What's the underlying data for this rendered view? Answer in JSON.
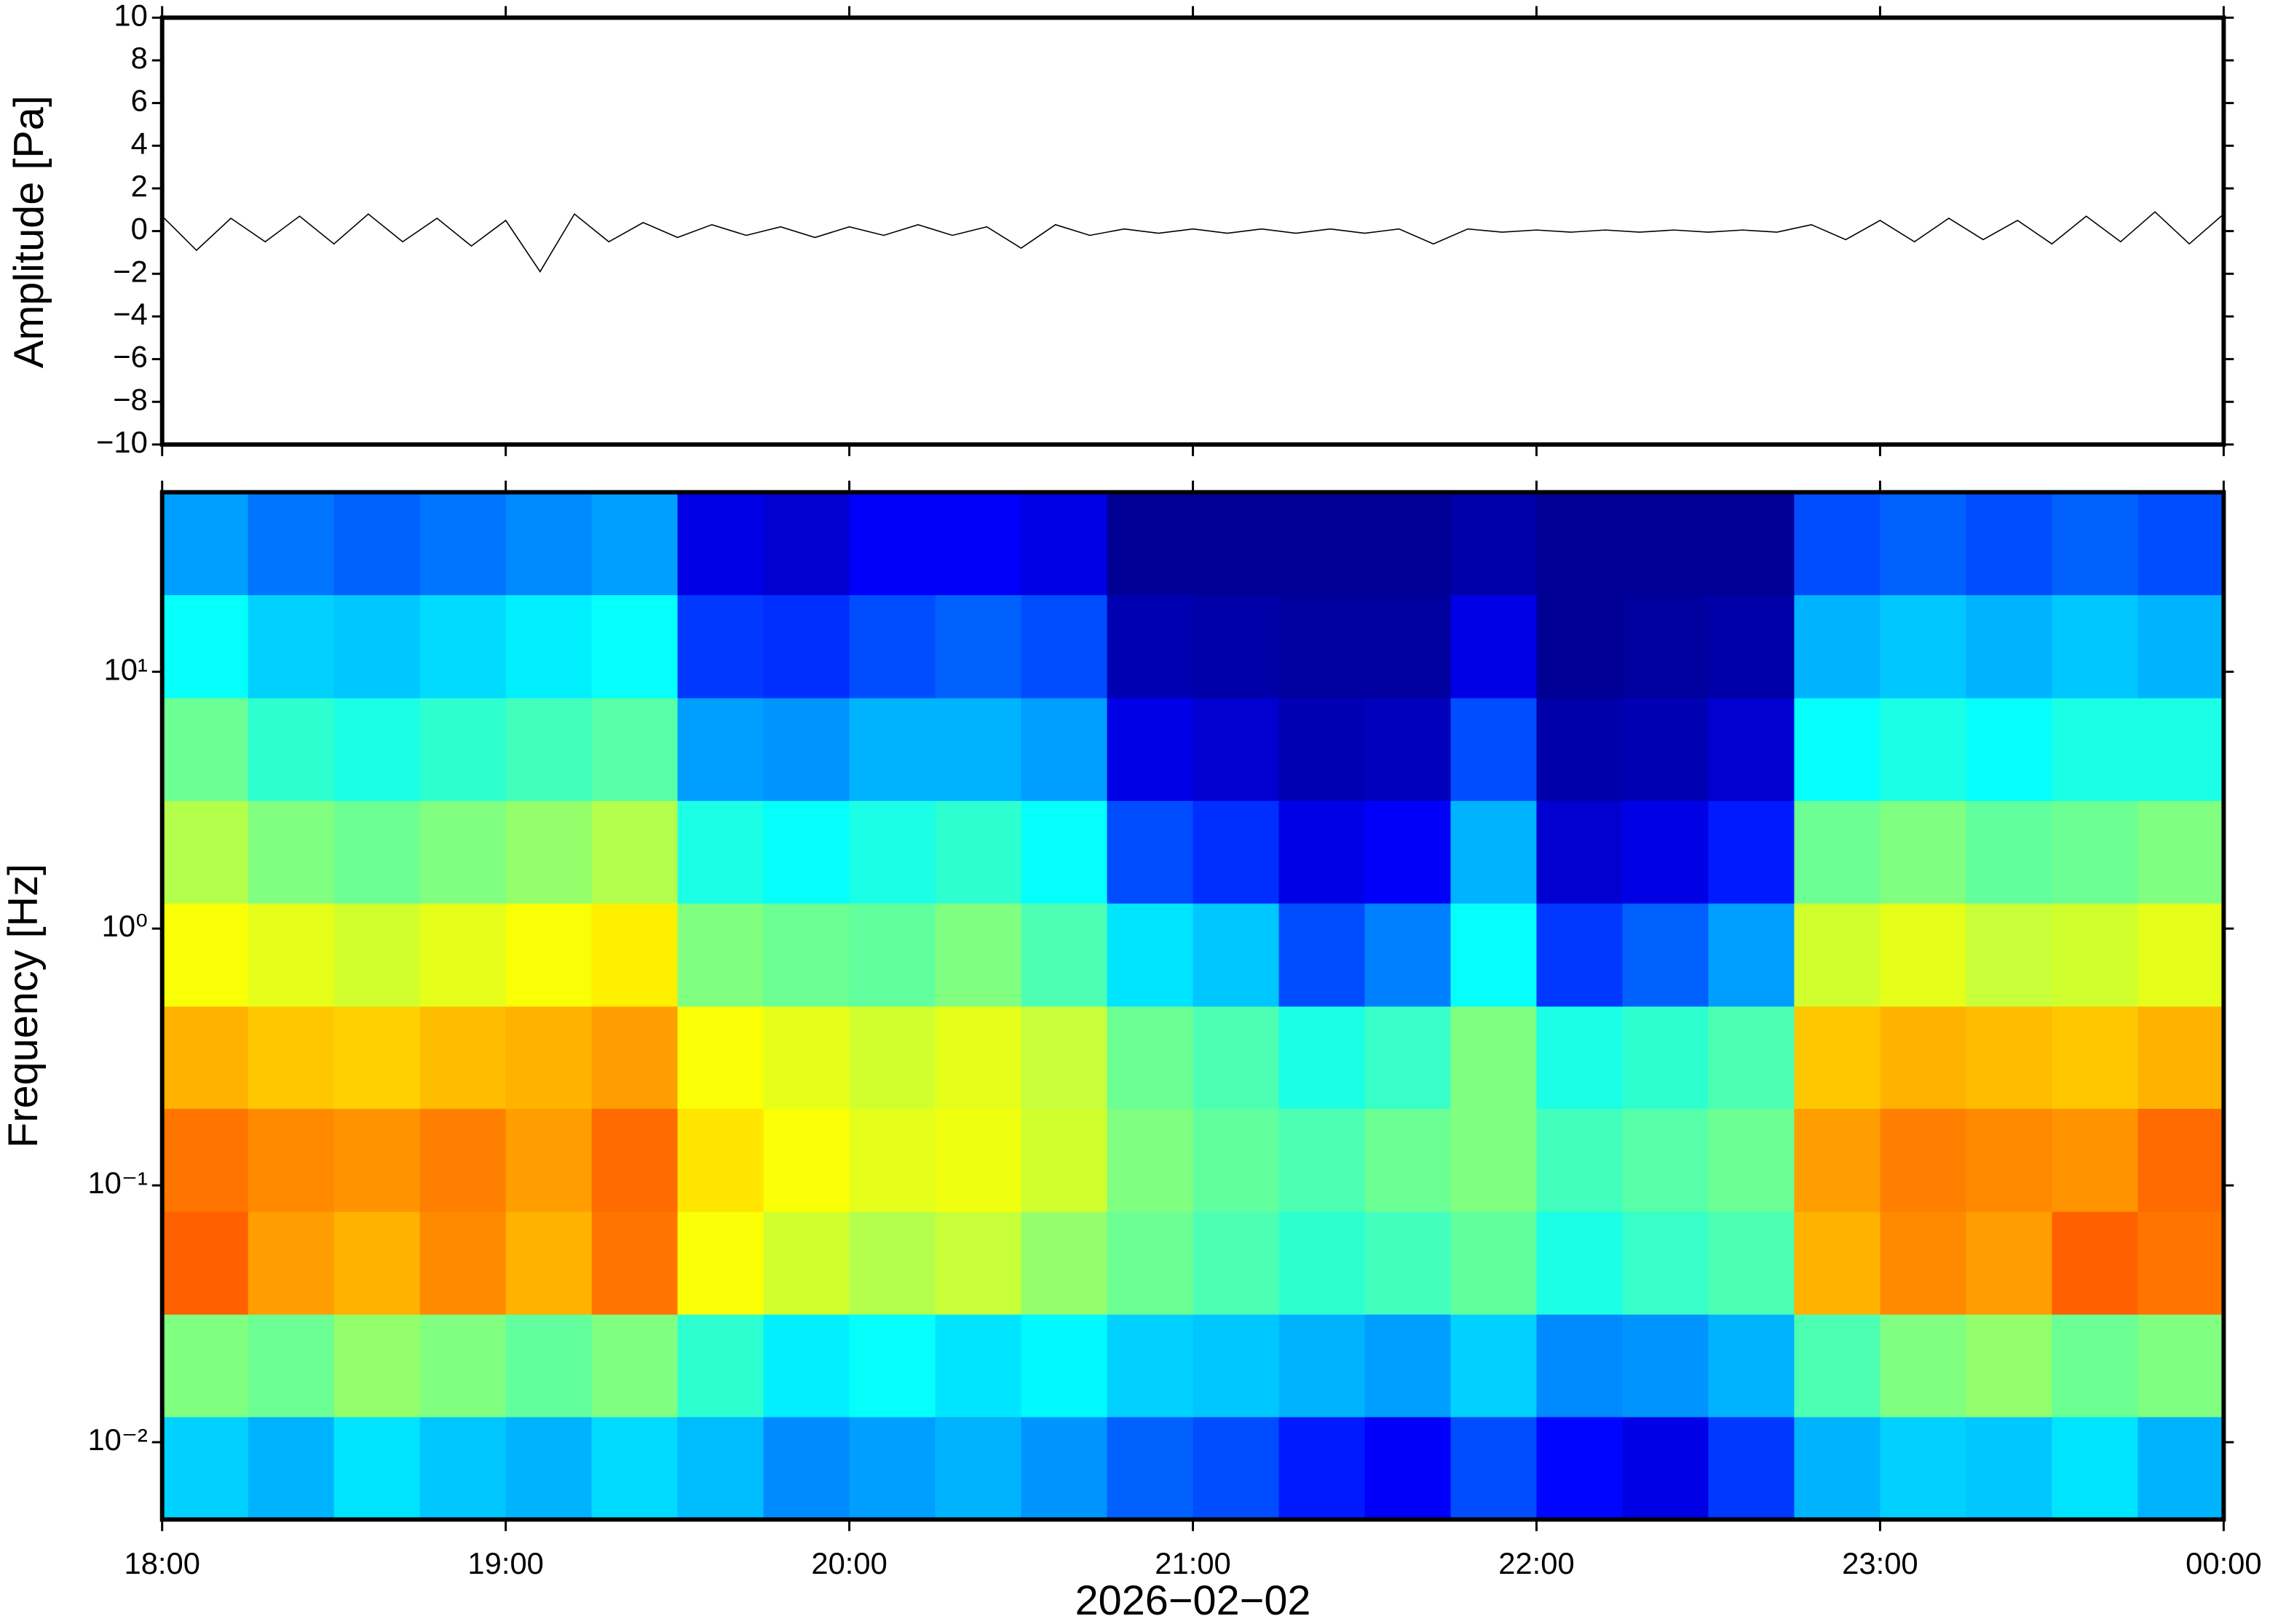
{
  "chart_data": [
    {
      "type": "line",
      "ylabel": "Amplitude [Pa]",
      "color": "#000000",
      "xlim": [
        18,
        24
      ],
      "ylim": [
        -10,
        10
      ],
      "yticks": [
        {
          "value": -10,
          "label": "−10"
        },
        {
          "value": -8,
          "label": "−8"
        },
        {
          "value": -6,
          "label": "−6"
        },
        {
          "value": -4,
          "label": "−4"
        },
        {
          "value": -2,
          "label": "−2"
        },
        0,
        2,
        4,
        6,
        8,
        10
      ],
      "x": [
        18,
        18.1,
        18.2,
        18.3,
        18.4,
        18.5,
        18.6,
        18.7,
        18.8,
        18.9,
        19,
        19.1,
        19.2,
        19.3,
        19.4,
        19.5,
        19.6,
        19.7,
        19.8,
        19.9,
        20,
        20.1,
        20.2,
        20.3,
        20.4,
        20.5,
        20.6,
        20.7,
        20.8,
        20.9,
        21,
        21.1,
        21.2,
        21.3,
        21.4,
        21.5,
        21.6,
        21.7,
        21.8,
        21.9,
        22,
        22.1,
        22.2,
        22.3,
        22.4,
        22.5,
        22.6,
        22.7,
        22.8,
        22.9,
        23,
        23.1,
        23.2,
        23.3,
        23.4,
        23.5,
        23.6,
        23.7,
        23.8,
        23.9,
        24
      ],
      "values": [
        0.7,
        -0.9,
        0.6,
        -0.5,
        0.7,
        -0.6,
        0.8,
        -0.5,
        0.6,
        -0.7,
        0.5,
        -1.9,
        0.8,
        -0.5,
        0.4,
        -0.3,
        0.3,
        -0.2,
        0.2,
        -0.3,
        0.2,
        -0.2,
        0.3,
        -0.2,
        0.2,
        -0.8,
        0.3,
        -0.2,
        0.1,
        -0.1,
        0.1,
        -0.1,
        0.1,
        -0.1,
        0.1,
        -0.1,
        0.1,
        -0.6,
        0.1,
        -0.05,
        0.05,
        -0.05,
        0.05,
        -0.05,
        0.05,
        -0.05,
        0.05,
        -0.05,
        0.3,
        -0.4,
        0.5,
        -0.5,
        0.6,
        -0.4,
        0.5,
        -0.6,
        0.7,
        -0.5,
        0.9,
        -0.6,
        0.8
      ]
    },
    {
      "type": "heatmap",
      "ylabel": "Frequency [Hz]",
      "xlabel": "2026−02−02",
      "log_y": true,
      "colorscale": "jet",
      "xlim": [
        18,
        24
      ],
      "ylim": [
        0.005,
        50
      ],
      "xticks": [
        {
          "value": 18,
          "label": "18:00"
        },
        {
          "value": 19,
          "label": "19:00"
        },
        {
          "value": 20,
          "label": "20:00"
        },
        {
          "value": 21,
          "label": "21:00"
        },
        {
          "value": 22,
          "label": "22:00"
        },
        {
          "value": 23,
          "label": "23:00"
        },
        {
          "value": 24,
          "label": "00:00"
        }
      ],
      "yticks": [
        {
          "value": 0.01,
          "label": "10⁻²"
        },
        {
          "value": 0.1,
          "label": "10⁻¹"
        },
        {
          "value": 1,
          "label": "10⁰"
        },
        {
          "value": 10,
          "label": "10¹"
        }
      ],
      "x_edges": [
        18,
        18.25,
        18.5,
        18.75,
        19,
        19.25,
        19.5,
        19.75,
        20,
        20.25,
        20.5,
        20.75,
        21,
        21.25,
        21.5,
        21.75,
        22,
        22.25,
        22.5,
        22.75,
        23,
        23.25,
        23.5,
        23.75,
        24
      ],
      "y_edges": [
        0.005,
        0.0126,
        0.0316,
        0.0794,
        0.2,
        0.5,
        1.26,
        3.16,
        7.94,
        20,
        50
      ],
      "values": [
        [
          0.33,
          0.3,
          0.35,
          0.32,
          0.3,
          0.34,
          0.31,
          0.26,
          0.28,
          0.3,
          0.27,
          0.22,
          0.2,
          0.15,
          0.12,
          0.2,
          0.13,
          0.1,
          0.18,
          0.3,
          0.33,
          0.32,
          0.35,
          0.3
        ],
        [
          0.5,
          0.48,
          0.52,
          0.5,
          0.47,
          0.5,
          0.42,
          0.36,
          0.38,
          0.35,
          0.37,
          0.33,
          0.32,
          0.3,
          0.28,
          0.33,
          0.26,
          0.27,
          0.3,
          0.45,
          0.5,
          0.52,
          0.48,
          0.5
        ],
        [
          0.78,
          0.72,
          0.7,
          0.74,
          0.7,
          0.76,
          0.62,
          0.58,
          0.55,
          0.57,
          0.52,
          0.48,
          0.45,
          0.42,
          0.44,
          0.47,
          0.4,
          0.43,
          0.45,
          0.7,
          0.74,
          0.72,
          0.78,
          0.76
        ],
        [
          0.76,
          0.74,
          0.73,
          0.75,
          0.72,
          0.77,
          0.65,
          0.62,
          0.6,
          0.61,
          0.58,
          0.5,
          0.47,
          0.45,
          0.48,
          0.5,
          0.44,
          0.46,
          0.48,
          0.72,
          0.75,
          0.74,
          0.73,
          0.77
        ],
        [
          0.7,
          0.68,
          0.67,
          0.69,
          0.7,
          0.72,
          0.62,
          0.6,
          0.58,
          0.6,
          0.57,
          0.48,
          0.45,
          0.4,
          0.43,
          0.5,
          0.4,
          0.42,
          0.45,
          0.68,
          0.7,
          0.69,
          0.68,
          0.7
        ],
        [
          0.62,
          0.6,
          0.58,
          0.6,
          0.62,
          0.64,
          0.5,
          0.48,
          0.47,
          0.5,
          0.45,
          0.35,
          0.32,
          0.2,
          0.25,
          0.38,
          0.18,
          0.22,
          0.28,
          0.58,
          0.6,
          0.57,
          0.58,
          0.6
        ],
        [
          0.55,
          0.5,
          0.48,
          0.5,
          0.52,
          0.55,
          0.4,
          0.38,
          0.4,
          0.42,
          0.38,
          0.2,
          0.17,
          0.1,
          0.12,
          0.3,
          0.08,
          0.1,
          0.15,
          0.48,
          0.5,
          0.47,
          0.48,
          0.5
        ],
        [
          0.48,
          0.42,
          0.4,
          0.42,
          0.44,
          0.46,
          0.28,
          0.27,
          0.3,
          0.3,
          0.28,
          0.1,
          0.08,
          0.05,
          0.06,
          0.2,
          0.04,
          0.05,
          0.08,
          0.38,
          0.4,
          0.38,
          0.4,
          0.4
        ],
        [
          0.38,
          0.33,
          0.32,
          0.34,
          0.36,
          0.38,
          0.18,
          0.17,
          0.2,
          0.22,
          0.2,
          0.05,
          0.04,
          0.03,
          0.03,
          0.1,
          0.02,
          0.03,
          0.04,
          0.3,
          0.32,
          0.3,
          0.32,
          0.3
        ],
        [
          0.28,
          0.24,
          0.22,
          0.24,
          0.26,
          0.28,
          0.1,
          0.08,
          0.12,
          0.12,
          0.1,
          0.02,
          0.02,
          0.02,
          0.02,
          0.04,
          0.02,
          0.02,
          0.02,
          0.2,
          0.22,
          0.2,
          0.22,
          0.2
        ]
      ]
    }
  ]
}
